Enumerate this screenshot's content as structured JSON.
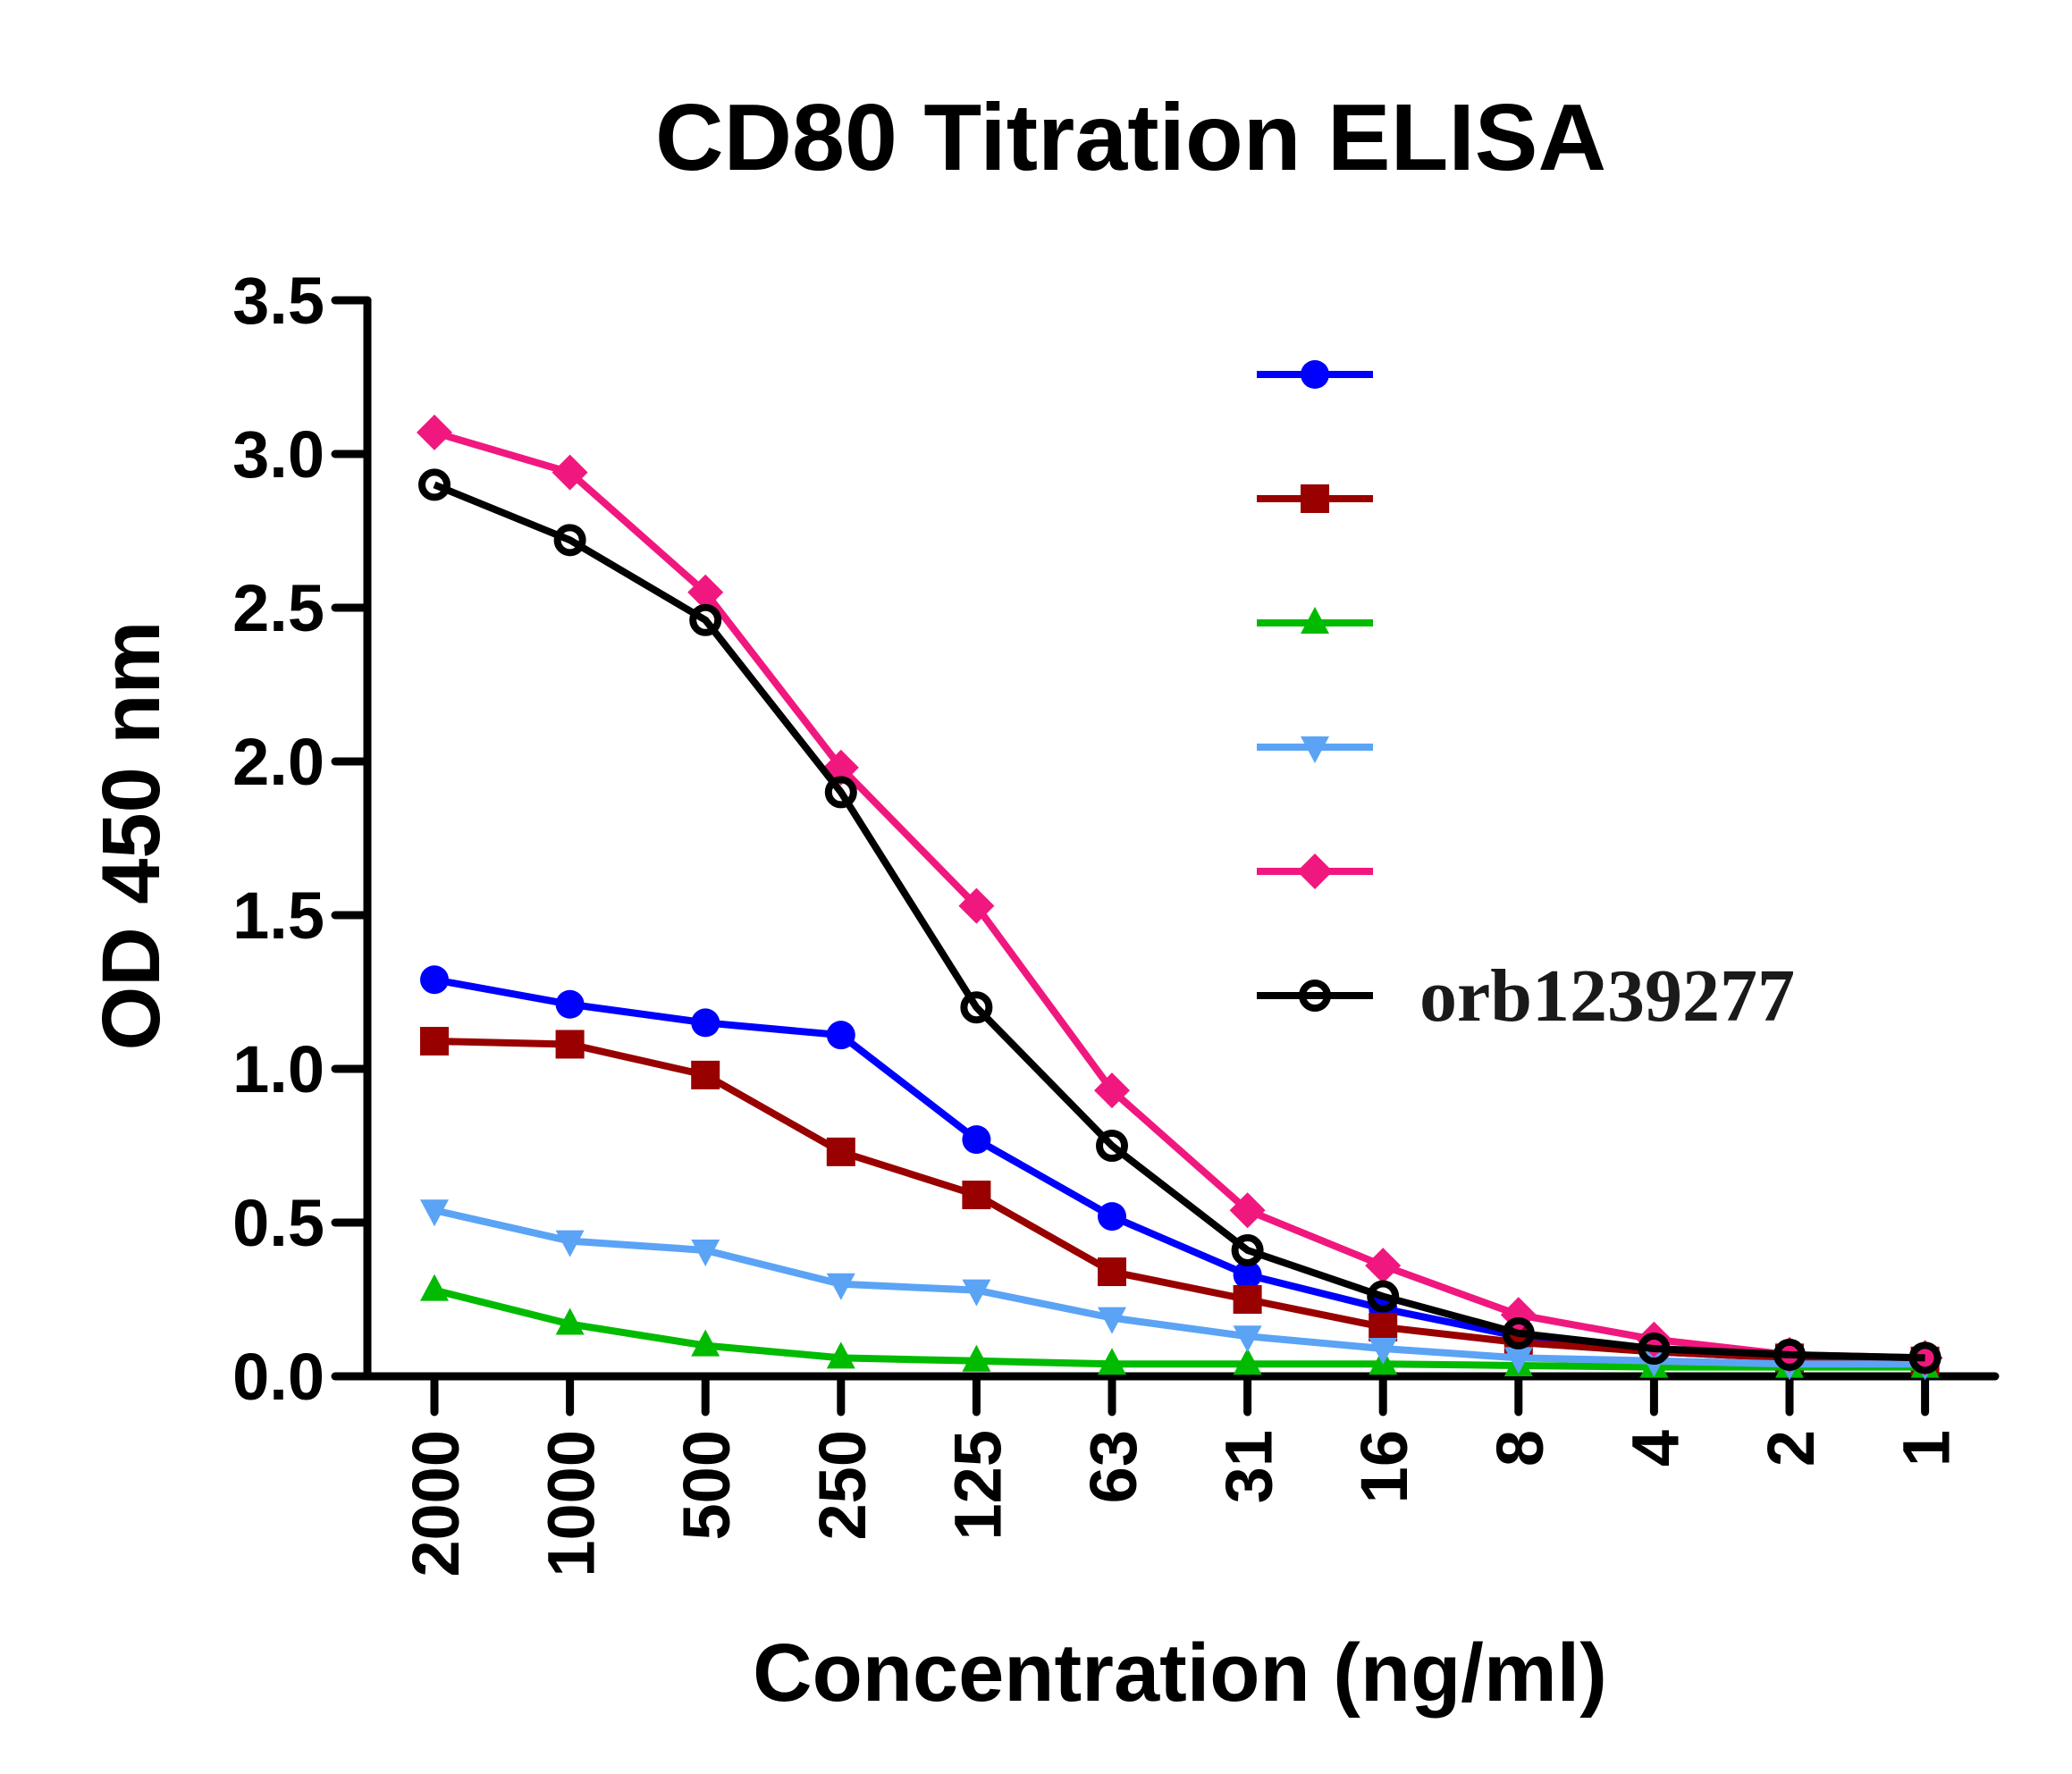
{
  "chart_data": {
    "type": "line",
    "title": "CD80 Titration ELISA",
    "xlabel": "Concentration (ng/ml)",
    "ylabel": "OD 450 nm",
    "ylim": [
      0,
      3.5
    ],
    "yticks": [
      "0.0",
      "0.5",
      "1.0",
      "1.5",
      "2.0",
      "2.5",
      "3.0",
      "3.5"
    ],
    "categories": [
      "2000",
      "1000",
      "500",
      "250",
      "125",
      "63",
      "31",
      "16",
      "8",
      "4",
      "2",
      "1"
    ],
    "grid": false,
    "legend_position": "top-right",
    "series": [
      {
        "color": "#0000ff",
        "marker": "circle",
        "values": [
          1.29,
          1.21,
          1.15,
          1.11,
          0.77,
          0.52,
          0.33,
          0.22,
          0.13,
          0.08,
          0.06,
          0.05
        ]
      },
      {
        "color": "#990000",
        "marker": "square",
        "values": [
          1.09,
          1.08,
          0.98,
          0.73,
          0.59,
          0.34,
          0.25,
          0.16,
          0.11,
          0.08,
          0.06,
          0.05
        ]
      },
      {
        "color": "#00bb00",
        "marker": "triangle-up",
        "values": [
          0.28,
          0.17,
          0.1,
          0.06,
          0.05,
          0.04,
          0.04,
          0.04,
          0.035,
          0.03,
          0.03,
          0.03
        ]
      },
      {
        "color": "#5ba3f5",
        "marker": "triangle-down",
        "values": [
          0.54,
          0.44,
          0.41,
          0.3,
          0.28,
          0.19,
          0.13,
          0.09,
          0.06,
          0.05,
          0.04,
          0.04
        ]
      },
      {
        "color": "#f0187f",
        "marker": "diamond",
        "values": [
          3.07,
          2.94,
          2.55,
          1.98,
          1.53,
          0.93,
          0.54,
          0.36,
          0.2,
          0.12,
          0.07,
          0.06
        ]
      },
      {
        "name": "orb1239277",
        "color": "#000000",
        "marker": "open-circle",
        "values": [
          2.9,
          2.72,
          2.46,
          1.9,
          1.2,
          0.75,
          0.41,
          0.26,
          0.14,
          0.09,
          0.07,
          0.06
        ]
      }
    ]
  }
}
